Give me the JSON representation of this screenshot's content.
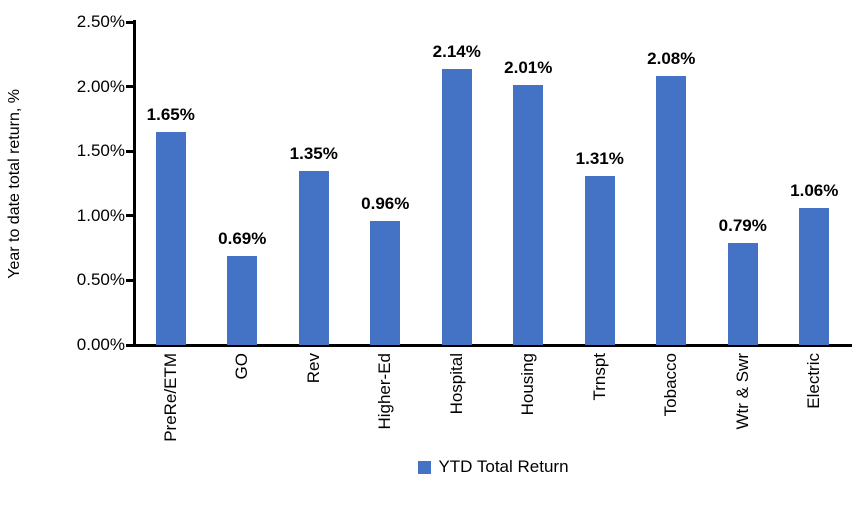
{
  "chart_data": {
    "type": "bar",
    "title": "",
    "xlabel": "",
    "ylabel": "Year to date total return, %",
    "categories": [
      "PreRe/ETM",
      "GO",
      "Rev",
      "Higher-Ed",
      "Hospital",
      "Housing",
      "Trnspt",
      "Tobacco",
      "Wtr & Swr",
      "Electric"
    ],
    "series": [
      {
        "name": "YTD Total Return",
        "values": [
          1.65,
          0.69,
          1.35,
          0.96,
          2.14,
          2.01,
          1.31,
          2.08,
          0.79,
          1.06
        ]
      }
    ],
    "data_labels": [
      "1.65%",
      "0.69%",
      "1.35%",
      "0.96%",
      "2.14%",
      "2.01%",
      "1.31%",
      "2.08%",
      "0.79%",
      "1.06%"
    ],
    "y_ticks": [
      "0.00%",
      "0.50%",
      "1.00%",
      "1.50%",
      "2.00%",
      "2.50%"
    ],
    "y_tick_values": [
      0,
      0.5,
      1.0,
      1.5,
      2.0,
      2.5
    ],
    "ylim": [
      0,
      2.5
    ],
    "grid": false,
    "legend_position": "bottom",
    "bar_color": "#4472C4",
    "axis_color": "#000000",
    "text_color": "#000000"
  },
  "legend": {
    "label": "YTD Total Return",
    "marker_color": "#4472C4"
  }
}
